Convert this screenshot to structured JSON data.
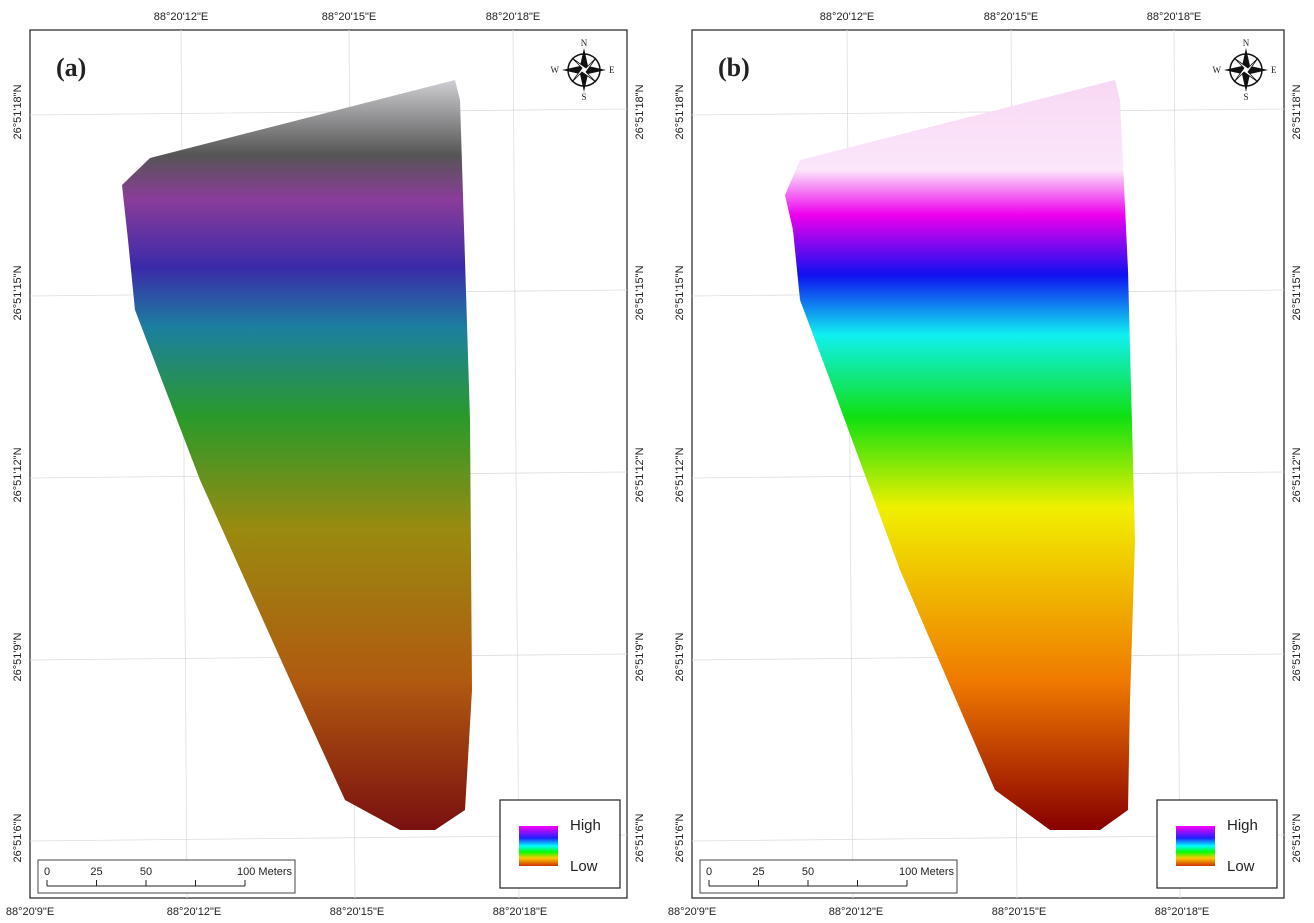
{
  "panels": [
    {
      "label": "(a)",
      "top_ticks": [
        "88°20'12\"E",
        "88°20'15\"E",
        "88°20'18\"E"
      ],
      "bottom_ticks": [
        "88°20'9\"E",
        "88°20'12\"E",
        "88°20'15\"E",
        "88°20'18\"E"
      ],
      "left_ticks": [
        "26°51'18\"N",
        "26°51'15\"N",
        "26°51'12\"N",
        "26°51'9\"N",
        "26°51'6\"N"
      ],
      "right_ticks": [
        "26°51'18\"N",
        "26°51'15\"N",
        "26°51'12\"N",
        "26°51'9\"N",
        "26°51'6\"N"
      ],
      "compass": {
        "n": "N",
        "e": "E",
        "s": "S",
        "w": "W"
      },
      "legend": {
        "high": "High",
        "low": "Low"
      },
      "scale_bar": [
        "0",
        "25",
        "50",
        "100 Meters"
      ]
    },
    {
      "label": "(b)",
      "top_ticks": [
        "88°20'12\"E",
        "88°20'15\"E",
        "88°20'18\"E"
      ],
      "bottom_ticks": [
        "88°20'9\"E",
        "88°20'12\"E",
        "88°20'15\"E",
        "88°20'18\"E"
      ],
      "left_ticks": [
        "26°51'18\"N",
        "26°51'15\"N",
        "26°51'12\"N",
        "26°51'9\"N",
        "26°51'6\"N"
      ],
      "right_ticks": [
        "26°51'18\"N",
        "26°51'15\"N",
        "26°51'12\"N",
        "26°51'9\"N",
        "26°51'6\"N"
      ],
      "compass": {
        "n": "N",
        "e": "E",
        "s": "S",
        "w": "W"
      },
      "legend": {
        "high": "High",
        "low": "Low"
      },
      "scale_bar": [
        "0",
        "25",
        "50",
        "100 Meters"
      ]
    }
  ]
}
